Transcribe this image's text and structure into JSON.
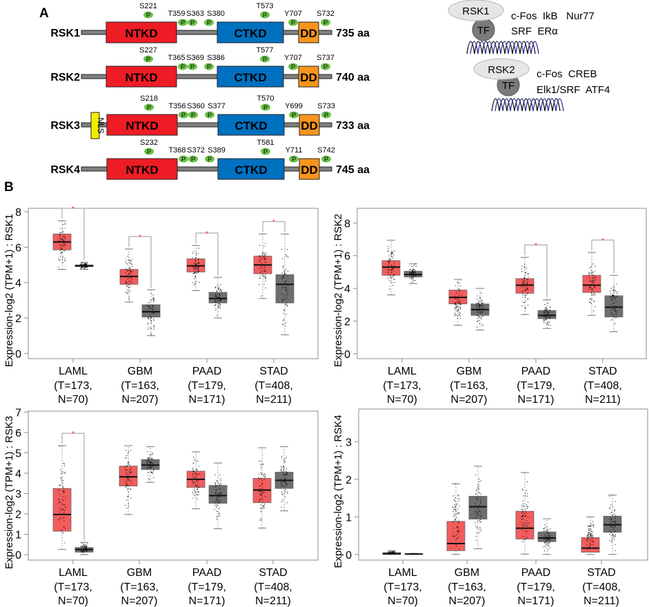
{
  "panel_a": {
    "label": "A",
    "domains": {
      "ntkd": "NTKD",
      "ctkd": "CTKD",
      "dd": "DD",
      "nls": "NLS",
      "phospho": "P"
    },
    "colors": {
      "ntkd": "#ee1c25",
      "ctkd": "#0070c0",
      "dd": "#f7941d",
      "nls": "#f2ee00",
      "phospho": "#6cc24a",
      "linker": "#808080"
    },
    "isoforms": [
      {
        "name": "RSK1",
        "length": "735 aa",
        "sites": [
          "S221",
          "T359",
          "S363",
          "S380",
          "T573",
          "Y707",
          "S732"
        ],
        "nls": false
      },
      {
        "name": "RSK2",
        "length": "740 aa",
        "sites": [
          "S227",
          "T365",
          "S369",
          "S386",
          "T577",
          "Y707",
          "S737"
        ],
        "nls": false
      },
      {
        "name": "RSK3",
        "length": "733 aa",
        "sites": [
          "S218",
          "T356",
          "S360",
          "S377",
          "T570",
          "Y699",
          "S733"
        ],
        "nls": true
      },
      {
        "name": "RSK4",
        "length": "745 aa",
        "sites": [
          "S232",
          "T368",
          "S372",
          "S389",
          "T581",
          "Y711",
          "S742"
        ],
        "nls": false
      }
    ],
    "targets": [
      {
        "kinase": "RSK1",
        "tf": "TF",
        "line1": "c-Fos  IkB   Nur77",
        "line2": "SRF  ERα"
      },
      {
        "kinase": "RSK2",
        "tf": "TF",
        "line1": "c-Fos  CREB",
        "line2": "Elk1/SRF  ATF4"
      }
    ]
  },
  "panel_b": {
    "label": "B"
  },
  "chart_data": [
    {
      "type": "box",
      "ylabel": "Expression-log2 (TPM+1) : RSK1",
      "ylim": [
        -0.3,
        8.2
      ],
      "yticks": [
        0,
        2,
        4,
        6,
        8
      ],
      "colors": {
        "tumor": "#f35c5c",
        "normal": "#6e6e6e"
      },
      "categories": [
        {
          "name": "LAML",
          "n1": "(T=173,",
          "n2": "N=70)"
        },
        {
          "name": "GBM",
          "n1": "(T=163,",
          "n2": "N=207)"
        },
        {
          "name": "PAAD",
          "n1": "(T=179,",
          "n2": "N=171)"
        },
        {
          "name": "STAD",
          "n1": "(T=408,",
          "n2": "N=211)"
        }
      ],
      "boxes": [
        {
          "tumor": [
            4.75,
            5.85,
            6.3,
            6.75,
            7.5
          ],
          "normal": [
            4.75,
            4.9,
            4.95,
            5.0,
            5.15
          ],
          "significant": true
        },
        {
          "tumor": [
            2.9,
            3.9,
            4.35,
            4.75,
            5.9
          ],
          "normal": [
            1.0,
            2.05,
            2.35,
            2.75,
            3.6
          ],
          "significant": true
        },
        {
          "tumor": [
            3.55,
            4.6,
            4.95,
            5.35,
            6.1
          ],
          "normal": [
            2.0,
            2.85,
            3.1,
            3.45,
            4.3
          ],
          "significant": true
        },
        {
          "tumor": [
            3.1,
            4.5,
            5.0,
            5.5,
            6.75
          ],
          "normal": [
            1.05,
            2.85,
            3.9,
            4.45,
            6.75
          ],
          "significant": true
        }
      ],
      "significance_mark": "*"
    },
    {
      "type": "box",
      "ylabel": "Expression-log2 (TPM+1) : RSK2",
      "ylim": [
        -0.3,
        8.9
      ],
      "yticks": [
        0,
        2,
        4,
        6,
        8
      ],
      "colors": {
        "tumor": "#f35c5c",
        "normal": "#6e6e6e"
      },
      "categories": [
        {
          "name": "LAML",
          "n1": "(T=173,",
          "n2": "N=70)"
        },
        {
          "name": "GBM",
          "n1": "(T=163,",
          "n2": "N=207)"
        },
        {
          "name": "PAAD",
          "n1": "(T=179,",
          "n2": "N=171)"
        },
        {
          "name": "STAD",
          "n1": "(T=408,",
          "n2": "N=211)"
        }
      ],
      "boxes": [
        {
          "tumor": [
            3.6,
            4.8,
            5.3,
            5.7,
            6.95
          ],
          "normal": [
            4.3,
            4.7,
            4.85,
            5.05,
            5.5
          ],
          "significant": false
        },
        {
          "tumor": [
            1.75,
            3.05,
            3.45,
            3.9,
            4.55
          ],
          "normal": [
            1.45,
            2.35,
            2.7,
            3.05,
            4.0
          ],
          "significant": false
        },
        {
          "tumor": [
            2.4,
            3.7,
            4.2,
            4.6,
            5.9
          ],
          "normal": [
            1.55,
            2.15,
            2.35,
            2.65,
            3.3
          ],
          "significant": true
        },
        {
          "tumor": [
            2.35,
            3.75,
            4.2,
            4.8,
            6.2
          ],
          "normal": [
            1.35,
            2.25,
            2.85,
            3.55,
            4.8
          ],
          "significant": true
        }
      ],
      "significance_mark": "*"
    },
    {
      "type": "box",
      "ylabel": "Expression-log2 (TPM+1) : RSK3",
      "ylim": [
        -0.27,
        7.05
      ],
      "yticks": [
        0,
        1,
        2,
        3,
        4,
        5,
        6,
        7
      ],
      "colors": {
        "tumor": "#f35c5c",
        "normal": "#6e6e6e"
      },
      "categories": [
        {
          "name": "LAML",
          "n1": "(T=173,",
          "n2": "N=70)"
        },
        {
          "name": "GBM",
          "n1": "(T=163,",
          "n2": "N=207)"
        },
        {
          "name": "PAAD",
          "n1": "(T=179,",
          "n2": "N=171)"
        },
        {
          "name": "STAD",
          "n1": "(T=408,",
          "n2": "N=211)"
        }
      ],
      "boxes": [
        {
          "tumor": [
            0.25,
            1.15,
            1.97,
            3.25,
            5.35
          ],
          "normal": [
            0.0,
            0.12,
            0.25,
            0.35,
            0.6
          ],
          "significant": true
        },
        {
          "tumor": [
            1.97,
            3.37,
            3.82,
            4.35,
            5.35
          ],
          "normal": [
            3.55,
            4.18,
            4.4,
            4.67,
            5.3
          ],
          "significant": false
        },
        {
          "tumor": [
            2.25,
            3.3,
            3.7,
            4.1,
            5.05
          ],
          "normal": [
            1.27,
            2.52,
            2.9,
            3.4,
            4.5
          ],
          "significant": false
        },
        {
          "tumor": [
            1.3,
            2.55,
            3.17,
            3.75,
            5.25
          ],
          "normal": [
            2.15,
            3.25,
            3.65,
            4.05,
            5.3
          ],
          "significant": false
        }
      ],
      "significance_mark": "*"
    },
    {
      "type": "box",
      "ylabel": "Expression-log2 (TPM+1) : RSK4",
      "ylim": [
        -0.15,
        3.87
      ],
      "yticks": [
        0,
        1,
        2,
        3
      ],
      "colors": {
        "tumor": "#f35c5c",
        "normal": "#6e6e6e"
      },
      "categories": [
        {
          "name": "LAML",
          "n1": "(T=173,",
          "n2": "N=70)"
        },
        {
          "name": "GBM",
          "n1": "(T=163,",
          "n2": "N=207)"
        },
        {
          "name": "PAAD",
          "n1": "(T=179,",
          "n2": "N=171)"
        },
        {
          "name": "STAD",
          "n1": "(T=408,",
          "n2": "N=211)"
        }
      ],
      "boxes": [
        {
          "tumor": [
            0.0,
            0.0,
            0.02,
            0.05,
            0.1
          ],
          "normal": [
            0.0,
            0.0,
            0.01,
            0.02,
            0.03
          ],
          "significant": false
        },
        {
          "tumor": [
            0.0,
            0.1,
            0.29,
            0.88,
            1.88
          ],
          "normal": [
            0.15,
            0.94,
            1.27,
            1.55,
            2.35
          ],
          "significant": false
        },
        {
          "tumor": [
            0.01,
            0.41,
            0.7,
            1.15,
            2.18
          ],
          "normal": [
            0.0,
            0.34,
            0.44,
            0.6,
            0.95
          ],
          "significant": false
        },
        {
          "tumor": [
            0.0,
            0.06,
            0.17,
            0.45,
            1.0
          ],
          "normal": [
            0.0,
            0.59,
            0.79,
            1.02,
            1.58
          ],
          "significant": false
        }
      ],
      "significance_mark": "*"
    }
  ]
}
